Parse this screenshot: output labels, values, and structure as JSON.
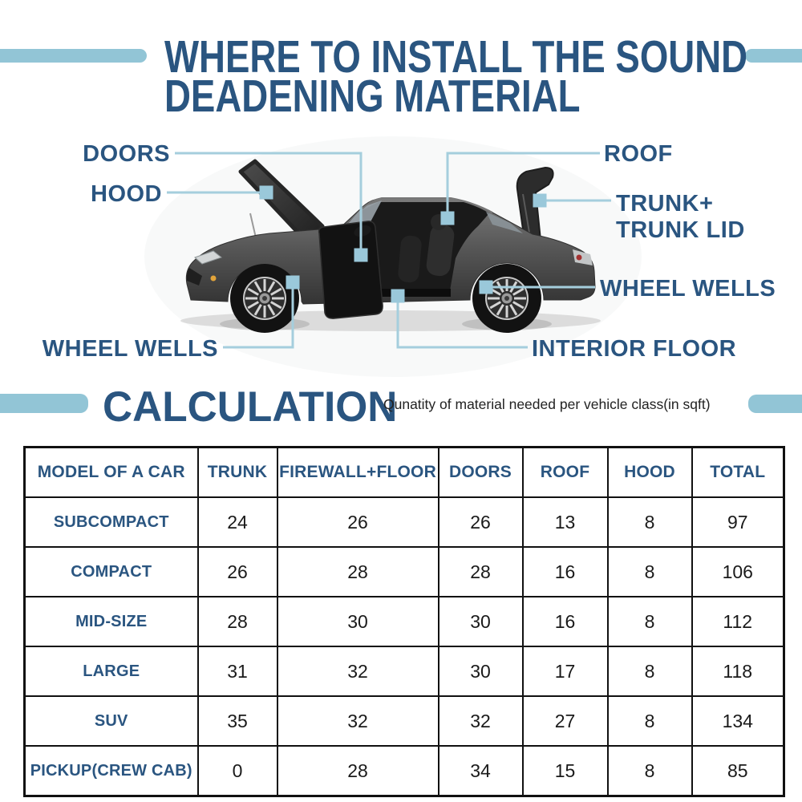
{
  "title": {
    "line1": "WHERE TO INSTALL THE SOUND",
    "line2": "DEADENING MATERIAL"
  },
  "colors": {
    "heading_blue": "#2a5580",
    "decor_bar": "#92c5d6",
    "connector_line": "#a5cedd",
    "connector_endpoint": "#9ac8da",
    "table_border": "#111111",
    "number_text": "#1a1a1a"
  },
  "diagram": {
    "labels": {
      "doors": "DOORS",
      "hood": "HOOD",
      "roof": "ROOF",
      "trunk_line1": "TRUNK+",
      "trunk_line2": "TRUNK LID",
      "wheel_wells_right": "WHEEL WELLS",
      "interior_floor": "INTERIOR FLOOR",
      "wheel_wells_left": "WHEEL WELLS"
    }
  },
  "calculation": {
    "heading": "CALCULATION",
    "subtitle": "Qunatity of material needed per vehicle class(in sqft)"
  },
  "table": {
    "headers": [
      "MODEL OF A CAR",
      "TRUNK",
      "FIREWALL+FLOOR",
      "DOORS",
      "ROOF",
      "HOOD",
      "TOTAL"
    ],
    "rows": [
      {
        "model": "SUBCOMPACT",
        "values": [
          "24",
          "26",
          "26",
          "13",
          "8",
          "97"
        ]
      },
      {
        "model": "COMPACT",
        "values": [
          "26",
          "28",
          "28",
          "16",
          "8",
          "106"
        ]
      },
      {
        "model": "MID-SIZE",
        "values": [
          "28",
          "30",
          "30",
          "16",
          "8",
          "112"
        ]
      },
      {
        "model": "LARGE",
        "values": [
          "31",
          "32",
          "30",
          "17",
          "8",
          "118"
        ]
      },
      {
        "model": "SUV",
        "values": [
          "35",
          "32",
          "32",
          "27",
          "8",
          "134"
        ]
      },
      {
        "model": "PICKUP(CREW CAB)",
        "values": [
          "0",
          "28",
          "34",
          "15",
          "8",
          "85"
        ]
      }
    ]
  },
  "chart_data": {
    "type": "table",
    "title": "CALCULATION",
    "subtitle": "Qunatity of material needed per vehicle class(in sqft)",
    "columns": [
      "MODEL OF A CAR",
      "TRUNK",
      "FIREWALL+FLOOR",
      "DOORS",
      "ROOF",
      "HOOD",
      "TOTAL"
    ],
    "rows": [
      [
        "SUBCOMPACT",
        24,
        26,
        26,
        13,
        8,
        97
      ],
      [
        "COMPACT",
        26,
        28,
        28,
        16,
        8,
        106
      ],
      [
        "MID-SIZE",
        28,
        30,
        30,
        16,
        8,
        112
      ],
      [
        "LARGE",
        31,
        32,
        30,
        17,
        8,
        118
      ],
      [
        "SUV",
        35,
        32,
        32,
        27,
        8,
        134
      ],
      [
        "PICKUP(CREW CAB)",
        0,
        28,
        34,
        15,
        8,
        85
      ]
    ]
  }
}
